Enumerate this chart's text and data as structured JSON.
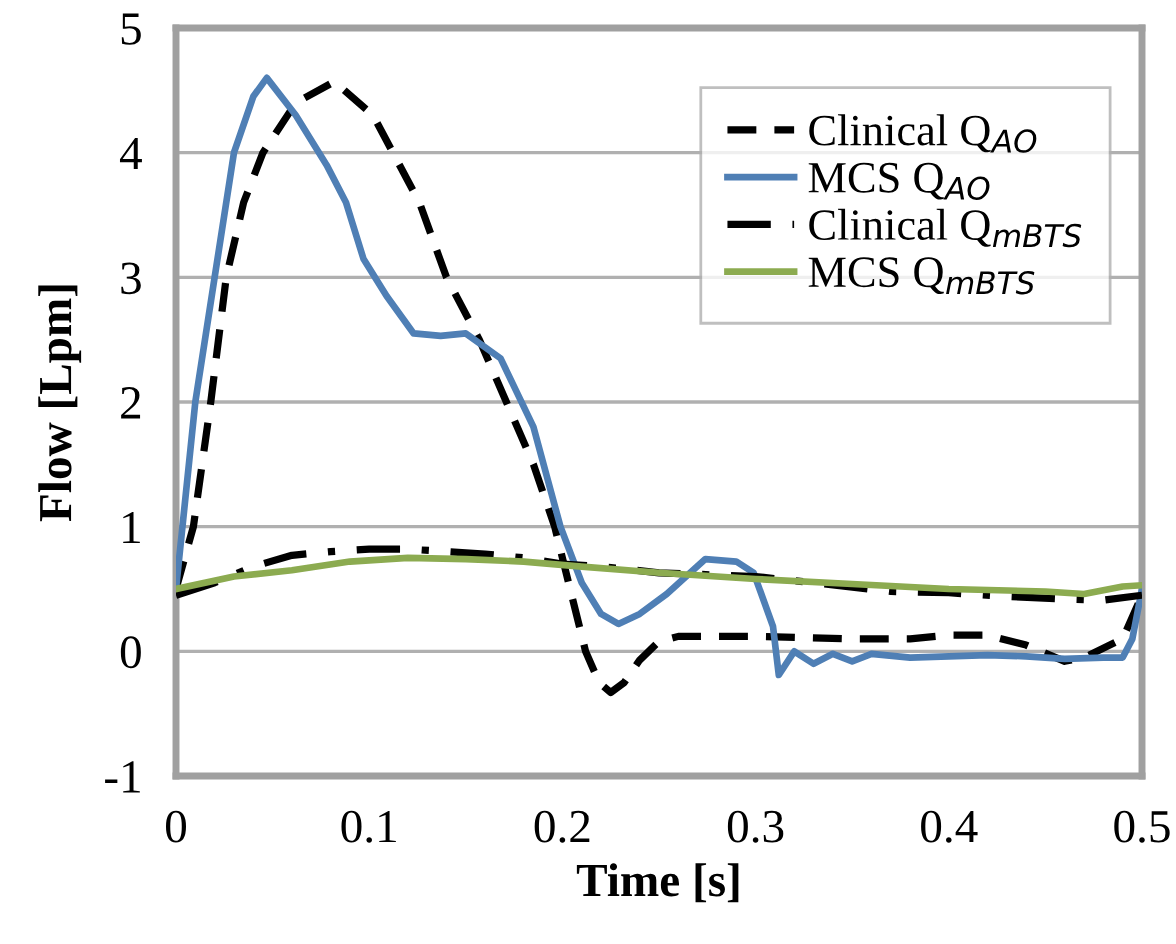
{
  "chart_data": {
    "type": "line",
    "xlabel": "Time [s]",
    "ylabel": "Flow [Lpm]",
    "xlim": [
      0,
      0.5
    ],
    "ylim": [
      -1,
      5
    ],
    "xticks": [
      0,
      0.1,
      0.2,
      0.3,
      0.4,
      0.5
    ],
    "yticks": [
      -1,
      0,
      1,
      2,
      3,
      4,
      5
    ],
    "grid": "y",
    "legend": "top right",
    "marker": "none",
    "series": [
      {
        "name": "Clinical Q$_{AO}$",
        "color": "#000000",
        "line_style": "dashed",
        "x": [
          0,
          0.009,
          0.018,
          0.026,
          0.035,
          0.045,
          0.062,
          0.082,
          0.102,
          0.126,
          0.14,
          0.157,
          0.171,
          0.185,
          0.196,
          0.204,
          0.212,
          0.219,
          0.225,
          0.232,
          0.24,
          0.25,
          0.26,
          0.3,
          0.35,
          0.38,
          0.4,
          0.42,
          0.44,
          0.46,
          0.47,
          0.49,
          0.5
        ],
        "values": [
          0.5,
          1,
          2,
          3,
          3.6,
          4,
          4.4,
          4.57,
          4.3,
          3.6,
          3,
          2.5,
          2,
          1.5,
          1,
          0.5,
          0,
          -0.25,
          -0.33,
          -0.25,
          -0.07,
          0.08,
          0.12,
          0.12,
          0.1,
          0.1,
          0.13,
          0.13,
          0.05,
          -0.08,
          -0.05,
          0.1,
          0.45
        ]
      },
      {
        "name": "MCS Q$_{AO}$",
        "color": "#4f7fb5",
        "line_style": "solid",
        "x": [
          0,
          0.01,
          0.02,
          0.03,
          0.04,
          0.047,
          0.062,
          0.078,
          0.088,
          0.097,
          0.109,
          0.123,
          0.137,
          0.15,
          0.168,
          0.185,
          0.199,
          0.21,
          0.22,
          0.229,
          0.24,
          0.254,
          0.274,
          0.29,
          0.299,
          0.309,
          0.312,
          0.32,
          0.33,
          0.34,
          0.35,
          0.36,
          0.38,
          0.4,
          0.42,
          0.44,
          0.46,
          0.48,
          0.49,
          0.495,
          0.5
        ],
        "values": [
          0.5,
          2,
          3,
          4,
          4.45,
          4.6,
          4.3,
          3.9,
          3.6,
          3.15,
          2.85,
          2.55,
          2.53,
          2.55,
          2.35,
          1.8,
          1,
          0.55,
          0.3,
          0.22,
          0.3,
          0.46,
          0.74,
          0.72,
          0.63,
          0.2,
          -0.19,
          0,
          -0.1,
          -0.02,
          -0.08,
          -0.02,
          -0.05,
          -0.04,
          -0.03,
          -0.04,
          -0.06,
          -0.05,
          -0.05,
          0.1,
          0.5
        ]
      },
      {
        "name": "Clinical Q$_{mBTS}$",
        "color": "#000000",
        "line_style": "dashdot",
        "x": [
          0,
          0.02,
          0.04,
          0.06,
          0.08,
          0.1,
          0.12,
          0.14,
          0.16,
          0.18,
          0.2,
          0.22,
          0.25,
          0.3,
          0.33,
          0.37,
          0.4,
          0.43,
          0.46,
          0.48,
          0.5
        ],
        "values": [
          0.45,
          0.55,
          0.68,
          0.77,
          0.8,
          0.82,
          0.82,
          0.8,
          0.78,
          0.75,
          0.7,
          0.68,
          0.63,
          0.6,
          0.55,
          0.48,
          0.47,
          0.44,
          0.42,
          0.41,
          0.45
        ]
      },
      {
        "name": "MCS Q$_{mBTS}$",
        "color": "#8cab50",
        "line_style": "solid",
        "x": [
          0,
          0.03,
          0.06,
          0.09,
          0.12,
          0.15,
          0.18,
          0.21,
          0.25,
          0.3,
          0.35,
          0.4,
          0.45,
          0.47,
          0.49,
          0.5
        ],
        "values": [
          0.5,
          0.6,
          0.65,
          0.72,
          0.75,
          0.74,
          0.72,
          0.68,
          0.63,
          0.58,
          0.54,
          0.5,
          0.48,
          0.46,
          0.52,
          0.53
        ]
      }
    ]
  }
}
